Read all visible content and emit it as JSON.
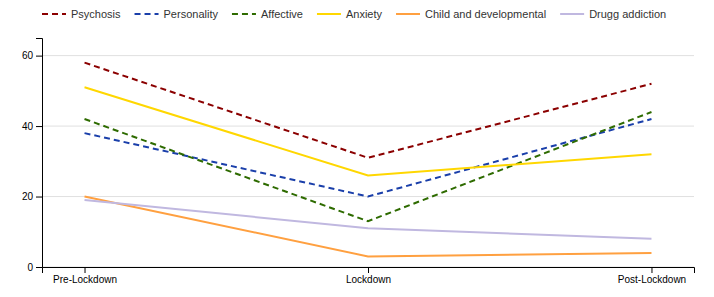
{
  "chart_data": {
    "type": "line",
    "categories": [
      "Pre-Lockdown",
      "Lockdown",
      "Post-Lockdown"
    ],
    "series": [
      {
        "name": "Psychosis",
        "values": [
          58,
          31,
          52
        ],
        "color": "#8B0000",
        "line_style": "dashed"
      },
      {
        "name": "Personality",
        "values": [
          38,
          20,
          42
        ],
        "color": "#1a3faa",
        "line_style": "dashed"
      },
      {
        "name": "Affective",
        "values": [
          42,
          13,
          44
        ],
        "color": "#2E6B00",
        "line_style": "dashed"
      },
      {
        "name": "Anxiety",
        "values": [
          51,
          26,
          32
        ],
        "color": "#FFD700",
        "line_style": "solid"
      },
      {
        "name": "Child and developmental",
        "values": [
          20,
          3,
          4
        ],
        "color": "#FFA040",
        "line_style": "solid"
      },
      {
        "name": "Drugg addiction",
        "values": [
          19,
          11,
          8
        ],
        "color": "#C0B8E0",
        "line_style": "solid"
      }
    ],
    "ylim": [
      0,
      65
    ],
    "yticks": [
      0,
      20,
      40,
      60
    ],
    "grid": true,
    "legend": "upper left"
  }
}
